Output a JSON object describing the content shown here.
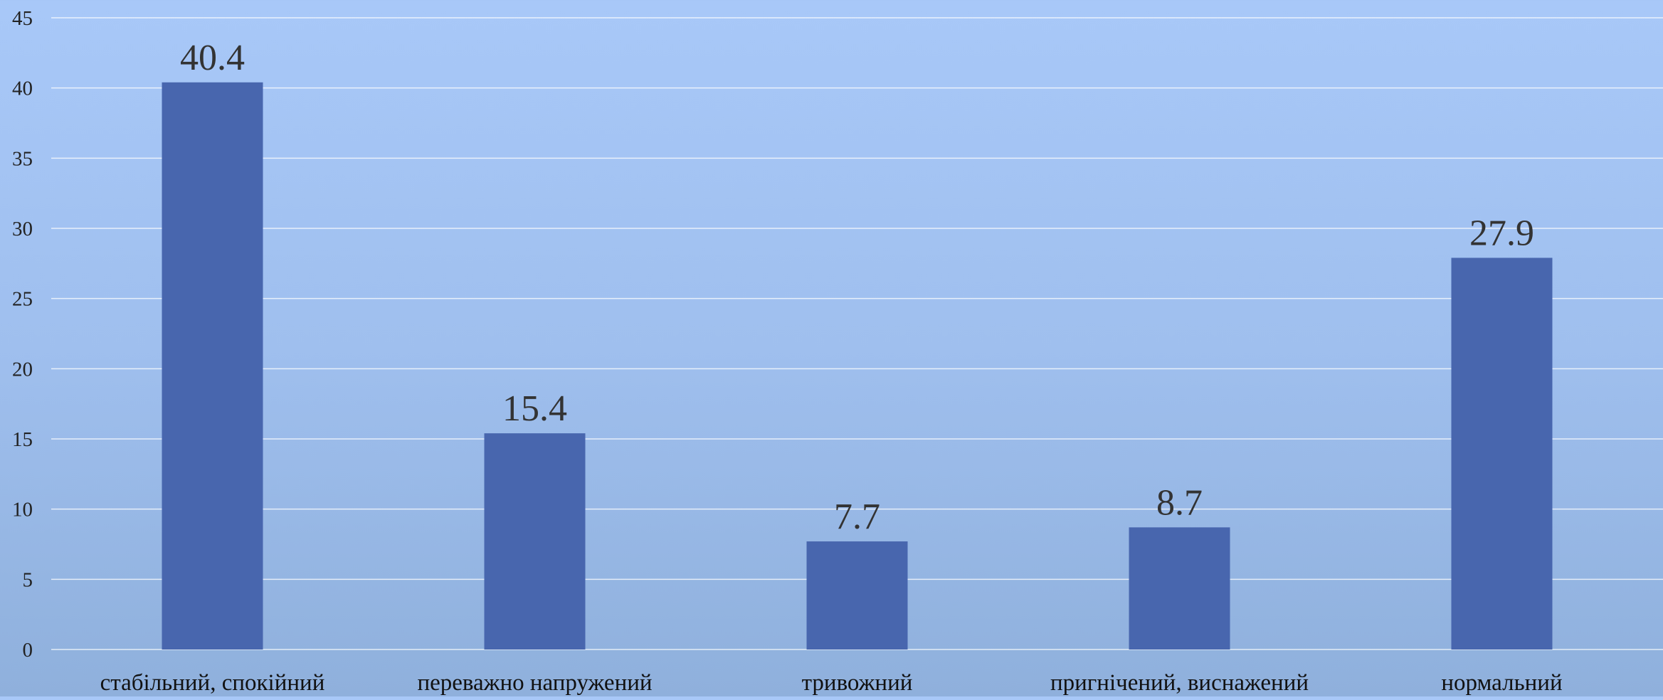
{
  "chart_data": {
    "type": "bar",
    "categories": [
      "стабільний, спокійний",
      "переважно напружений",
      "тривожний",
      "пригнічений, виснажений",
      "нормальний"
    ],
    "values": [
      40.4,
      15.4,
      7.7,
      8.7,
      27.9
    ],
    "data_labels": [
      "40.4",
      "15.4",
      "7.7",
      "8.7",
      "27.9"
    ],
    "title": "",
    "xlabel": "",
    "ylabel": "",
    "ylim": [
      0,
      45
    ],
    "yticks": [
      "0",
      "5",
      "10",
      "15",
      "20",
      "25",
      "30",
      "35",
      "40",
      "45"
    ],
    "grid": true,
    "legend": "none",
    "bar_color": "#4866ae",
    "background": "#a4c2f2"
  }
}
